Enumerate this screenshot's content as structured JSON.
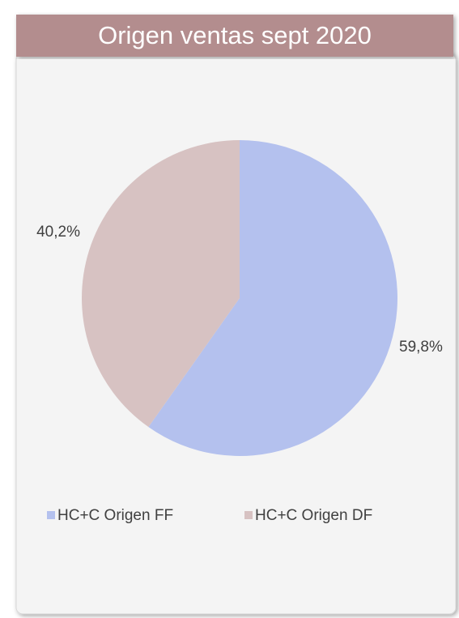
{
  "chart_data": {
    "type": "pie",
    "title": "Origen ventas sept 2020",
    "categories": [
      "HC+C Origen FF",
      "HC+C Origen DF"
    ],
    "values": [
      59.8,
      40.2
    ],
    "value_labels": [
      "59,8%",
      "40,2%"
    ],
    "colors": [
      "#b4c1ee",
      "#d7c2c2"
    ],
    "legend": "bottom"
  }
}
